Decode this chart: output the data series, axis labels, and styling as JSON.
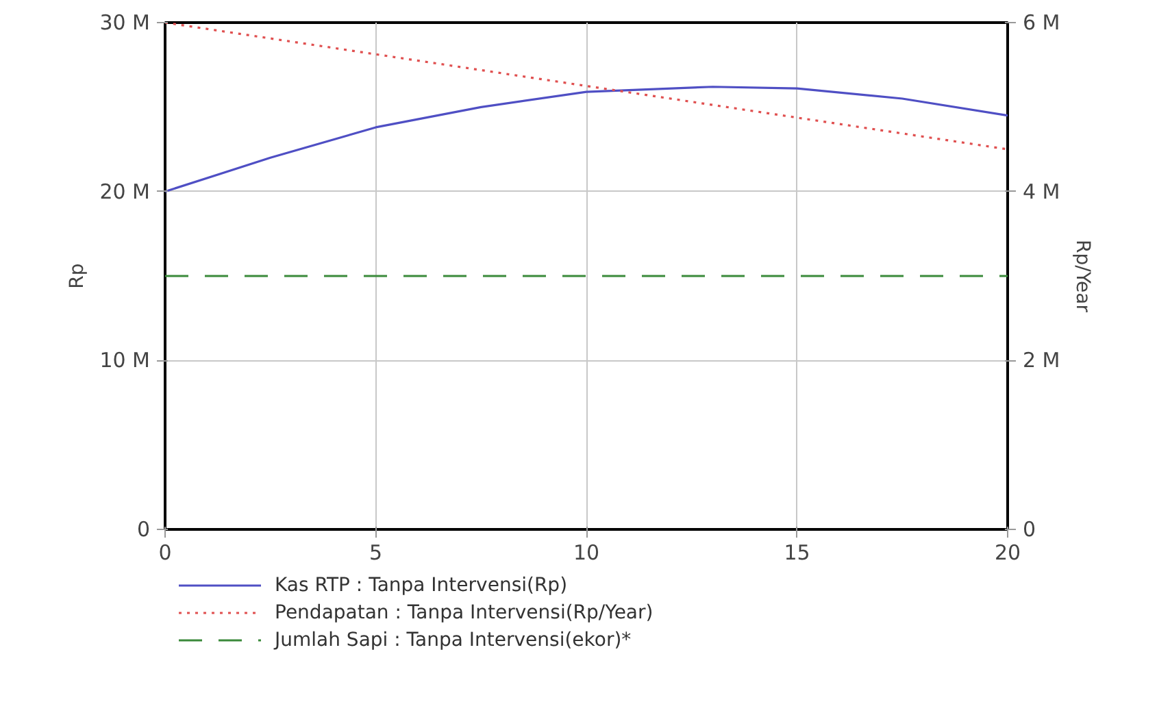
{
  "chart_data": {
    "type": "line",
    "ylabel": "Rp",
    "y2label": "Rp/Year",
    "xlim": [
      0,
      20
    ],
    "xticks": [
      0,
      5,
      10,
      15,
      20
    ],
    "ylim": [
      0,
      30000000
    ],
    "yticks": [
      0,
      {
        "value": 10000000,
        "label": "10 M"
      },
      {
        "value": 20000000,
        "label": "20 M"
      },
      {
        "value": 30000000,
        "label": "30 M"
      }
    ],
    "y2lim": [
      0,
      6000000
    ],
    "y2ticks": [
      0,
      {
        "value": 2000000,
        "label": "2 M"
      },
      {
        "value": 4000000,
        "label": "4 M"
      },
      {
        "value": 6000000,
        "label": "6 M"
      }
    ],
    "grid": true,
    "legend": "bottom",
    "marker": "none",
    "series": [
      {
        "name": "Kas RTP : Tanpa Intervensi(Rp)",
        "color": "#4f4fc4",
        "line_style": "solid",
        "x": [
          0,
          2.5,
          5,
          7.5,
          10,
          13,
          15,
          17.5,
          20
        ],
        "values": [
          20000000,
          22000000,
          23800000,
          25000000,
          25900000,
          26200000,
          26100000,
          25500000,
          24500000
        ]
      },
      {
        "name": "Pendapatan : Tanpa Intervensi(Rp/Year)",
        "color": "#e05050",
        "line_style": "dotted",
        "axis": "y2",
        "x": [
          0,
          20
        ],
        "values": [
          6000000,
          4500000
        ]
      },
      {
        "name": "Jumlah Sapi : Tanpa Intervensi(ekor)*",
        "color": "#3a8a3a",
        "line_style": "dashed",
        "x": [
          0,
          20
        ],
        "values": [
          15000000,
          15000000
        ]
      }
    ]
  }
}
